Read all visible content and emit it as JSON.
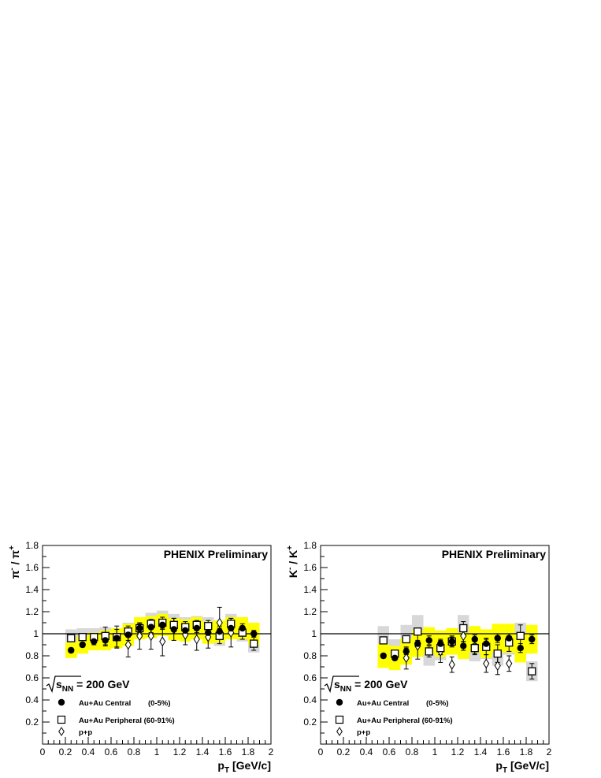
{
  "chart_data": [
    {
      "type": "scatter",
      "title": "PHENIX Preliminary",
      "ylabel": {
        "base": "π",
        "sup1": "-",
        "mid": " / π",
        "sup2": "+"
      },
      "xlabel": {
        "base": "p",
        "sub": "T",
        "rest": " [GeV/c]"
      },
      "xlim": [
        0,
        2
      ],
      "ylim": [
        0,
        1.8
      ],
      "x_ticks": [
        "0",
        "0.2",
        "0.4",
        "0.6",
        "0.8",
        "1",
        "1.2",
        "1.4",
        "1.6",
        "1.8",
        "2"
      ],
      "y_ticks": [
        "0.2",
        "0.4",
        "0.6",
        "0.8",
        "1",
        "1.2",
        "1.4",
        "1.6",
        "1.8"
      ],
      "reference_line": 1,
      "energy_label": {
        "s": "s",
        "sub": "NN",
        "rest": " = 200 GeV"
      },
      "legend": [
        {
          "marker": "filled-circle",
          "label": "Au+Au Central",
          "extra": "(0-5%)"
        },
        {
          "marker": "open-square",
          "label": "Au+Au Peripheral (60-91%)",
          "extra": ""
        },
        {
          "marker": "open-diamond",
          "label": "p+p",
          "extra": ""
        }
      ],
      "series": [
        {
          "name": "Au+Au Central",
          "marker": "filled-circle",
          "band_color": "#ffff00",
          "x": [
            0.25,
            0.35,
            0.45,
            0.55,
            0.65,
            0.75,
            0.85,
            0.95,
            1.05,
            1.15,
            1.25,
            1.35,
            1.45,
            1.55,
            1.65,
            1.75,
            1.85
          ],
          "y": [
            0.85,
            0.9,
            0.93,
            0.94,
            0.96,
            0.99,
            1.05,
            1.06,
            1.08,
            1.04,
            1.03,
            1.05,
            1.01,
            1.02,
            1.05,
            1.05,
            1.0
          ],
          "err": [
            0.02,
            0.02,
            0.03,
            0.05,
            0.08,
            0.05,
            0.04,
            0.05,
            0.04,
            0.04,
            0.04,
            0.04,
            0.04,
            0.05,
            0.05,
            0.04,
            0.03
          ],
          "band": [
            0.07,
            0.08,
            0.08,
            0.09,
            0.09,
            0.1,
            0.1,
            0.1,
            0.1,
            0.1,
            0.1,
            0.1,
            0.1,
            0.1,
            0.1,
            0.1,
            0.1
          ]
        },
        {
          "name": "Au+Au Peripheral (60-91%)",
          "marker": "open-square",
          "band_color": "#d8d8d8",
          "x": [
            0.25,
            0.35,
            0.45,
            0.55,
            0.65,
            0.75,
            0.85,
            0.95,
            1.05,
            1.15,
            1.25,
            1.35,
            1.45,
            1.55,
            1.65,
            1.75,
            1.85
          ],
          "y": [
            0.96,
            0.97,
            0.97,
            0.98,
            0.97,
            1.02,
            1.05,
            1.09,
            1.1,
            1.08,
            1.06,
            1.08,
            1.07,
            0.98,
            1.09,
            1.01,
            0.91
          ],
          "err": [
            0.02,
            0.02,
            0.02,
            0.08,
            0.1,
            0.05,
            0.05,
            0.04,
            0.05,
            0.06,
            0.05,
            0.04,
            0.05,
            0.07,
            0.05,
            0.06,
            0.06
          ],
          "band": [
            0.08,
            0.08,
            0.08,
            0.08,
            0.08,
            0.08,
            0.08,
            0.1,
            0.11,
            0.1,
            0.09,
            0.08,
            0.08,
            0.09,
            0.09,
            0.08,
            0.08
          ]
        },
        {
          "name": "p+p",
          "marker": "open-diamond",
          "x": [
            0.75,
            0.85,
            0.95,
            1.05,
            1.15,
            1.25,
            1.35,
            1.45,
            1.55,
            1.65
          ],
          "y": [
            0.9,
            0.98,
            0.98,
            0.93,
            1.04,
            0.99,
            0.95,
            0.97,
            1.1,
            1.01
          ],
          "err": [
            0.11,
            0.12,
            0.12,
            0.13,
            0.1,
            0.09,
            0.1,
            0.1,
            0.14,
            0.13
          ]
        }
      ]
    },
    {
      "type": "scatter",
      "title": "PHENIX Preliminary",
      "ylabel": {
        "base": "K",
        "sup1": "-",
        "mid": " / K",
        "sup2": "+"
      },
      "xlabel": {
        "base": "p",
        "sub": "T",
        "rest": " [GeV/c]"
      },
      "xlim": [
        0,
        2
      ],
      "ylim": [
        0,
        1.8
      ],
      "x_ticks": [
        "0",
        "0.2",
        "0.4",
        "0.6",
        "0.8",
        "1",
        "1.2",
        "1.4",
        "1.6",
        "1.8",
        "2"
      ],
      "y_ticks": [
        "0.2",
        "0.4",
        "0.6",
        "0.8",
        "1",
        "1.2",
        "1.4",
        "1.6",
        "1.8"
      ],
      "reference_line": 1,
      "energy_label": {
        "s": "s",
        "sub": "NN",
        "rest": " = 200 GeV"
      },
      "legend": [
        {
          "marker": "filled-circle",
          "label": "Au+Au Central",
          "extra": "(0-5%)"
        },
        {
          "marker": "open-square",
          "label": "Au+Au Peripheral (60-91%)",
          "extra": ""
        },
        {
          "marker": "open-diamond",
          "label": "p+p",
          "extra": ""
        }
      ],
      "series": [
        {
          "name": "Au+Au Central",
          "marker": "filled-circle",
          "band_color": "#ffff00",
          "x": [
            0.55,
            0.65,
            0.75,
            0.85,
            0.95,
            1.05,
            1.15,
            1.25,
            1.35,
            1.45,
            1.55,
            1.65,
            1.75,
            1.85
          ],
          "y": [
            0.8,
            0.78,
            0.84,
            0.91,
            0.94,
            0.91,
            0.93,
            0.89,
            0.95,
            0.91,
            0.96,
            0.96,
            0.87,
            0.95
          ],
          "err": [
            0.02,
            0.02,
            0.03,
            0.03,
            0.04,
            0.04,
            0.04,
            0.04,
            0.04,
            0.05,
            0.04,
            0.04,
            0.04,
            0.04
          ],
          "band": [
            0.11,
            0.11,
            0.12,
            0.12,
            0.12,
            0.12,
            0.12,
            0.12,
            0.12,
            0.13,
            0.13,
            0.13,
            0.13,
            0.13
          ]
        },
        {
          "name": "Au+Au Peripheral (60-91%)",
          "marker": "open-square",
          "band_color": "#d8d8d8",
          "x": [
            0.55,
            0.65,
            0.75,
            0.85,
            0.95,
            1.05,
            1.15,
            1.25,
            1.35,
            1.45,
            1.55,
            1.65,
            1.75,
            1.85
          ],
          "y": [
            0.94,
            0.82,
            0.95,
            1.02,
            0.84,
            0.87,
            0.93,
            1.05,
            0.87,
            0.88,
            0.82,
            0.92,
            0.98,
            0.66
          ],
          "err": [
            0.02,
            0.03,
            0.03,
            0.03,
            0.05,
            0.06,
            0.05,
            0.06,
            0.06,
            0.07,
            0.08,
            0.08,
            0.1,
            0.07
          ],
          "band": [
            0.13,
            0.13,
            0.13,
            0.15,
            0.13,
            0.11,
            0.11,
            0.12,
            0.12,
            0.11,
            0.11,
            0.11,
            0.12,
            0.09
          ]
        },
        {
          "name": "p+p",
          "marker": "open-diamond",
          "x": [
            0.75,
            0.85,
            1.05,
            1.15,
            1.25,
            1.35,
            1.45,
            1.55,
            1.65
          ],
          "y": [
            0.78,
            0.89,
            0.84,
            0.72,
            0.98,
            0.88,
            0.73,
            0.71,
            0.73
          ],
          "err": [
            0.1,
            0.12,
            0.1,
            0.07,
            0.05,
            0.06,
            0.08,
            0.08,
            0.07
          ]
        }
      ]
    }
  ]
}
